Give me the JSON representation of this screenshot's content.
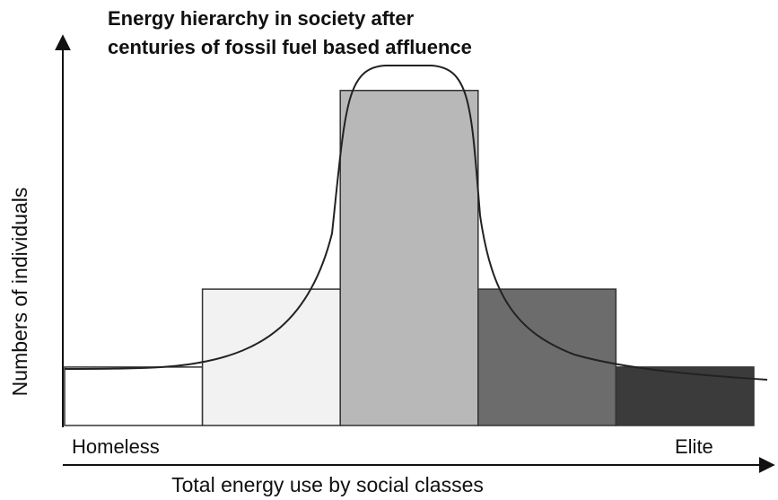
{
  "chart_data": {
    "type": "bar",
    "title": [
      "Energy hierarchy in society after",
      "centuries of fossil fuel based affluence"
    ],
    "y_label": "Numbers of individuals",
    "x_label": "Total energy use by social classes",
    "x_start_label": "Homeless",
    "x_end_label": "Elite",
    "categories": [
      null,
      null,
      null,
      null,
      null
    ],
    "values": [
      15,
      35,
      86,
      35,
      15
    ],
    "colors": [
      "#ffffff",
      "#f2f2f2",
      "#b8b8b8",
      "#6c6c6c",
      "#3b3b3b"
    ],
    "ylim": [
      0,
      100
    ]
  }
}
